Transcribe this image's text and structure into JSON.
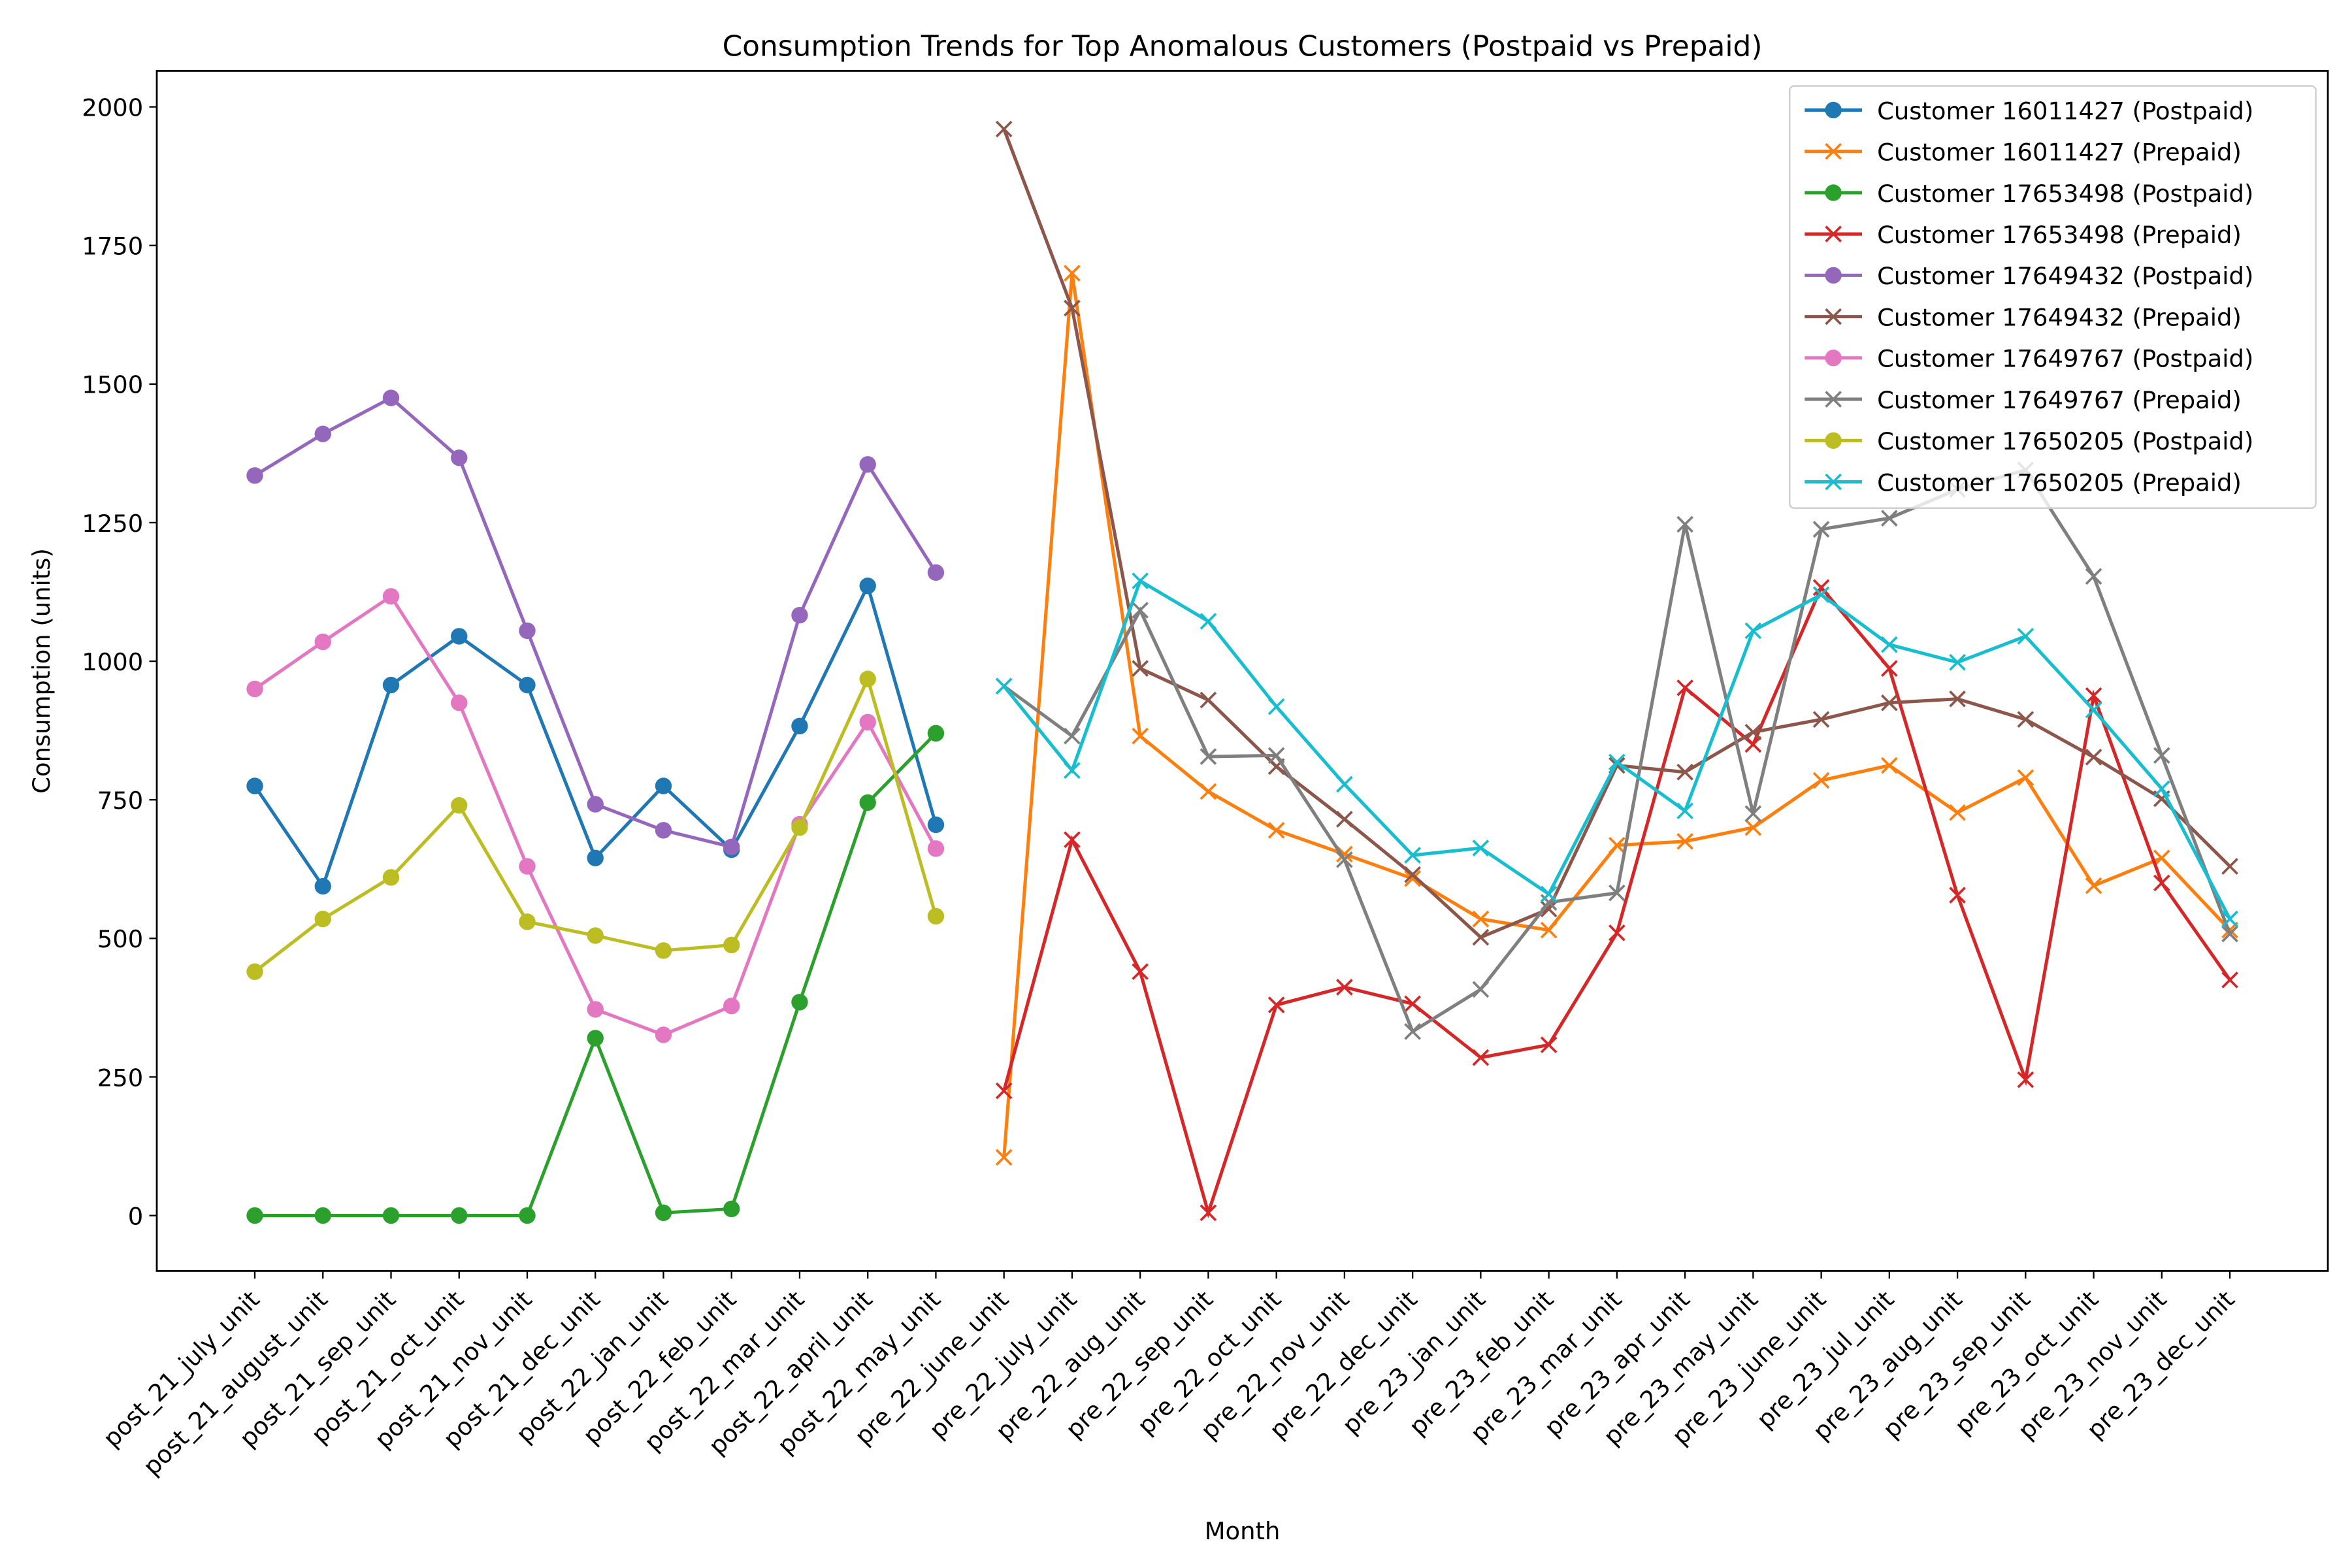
{
  "chart_data": {
    "type": "line",
    "title": "Consumption Trends for Top Anomalous Customers (Postpaid vs Prepaid)",
    "xlabel": "Month",
    "ylabel": "Consumption (units)",
    "categories": [
      "post_21_july_unit",
      "post_21_august_unit",
      "post_21_sep_unit",
      "post_21_oct_unit",
      "post_21_nov_unit",
      "post_21_dec_unit",
      "post_22_jan_unit",
      "post_22_feb_unit",
      "post_22_mar_unit",
      "post_22_april_unit",
      "post_22_may_unit",
      "pre_22_june_unit",
      "pre_22_july_unit",
      "pre_22_aug_unit",
      "pre_22_sep_unit",
      "pre_22_oct_unit",
      "pre_22_nov_unit",
      "pre_22_dec_unit",
      "pre_23_jan_unit",
      "pre_23_feb_unit",
      "pre_23_mar_unit",
      "pre_23_apr_unit",
      "pre_23_may_unit",
      "pre_23_june_unit",
      "pre_23_jul_unit",
      "pre_23_aug_unit",
      "pre_23_sep_unit",
      "pre_23_oct_unit",
      "pre_23_nov_unit",
      "pre_23_dec_unit"
    ],
    "ylim": [
      -100,
      2065
    ],
    "yticks": [
      0,
      250,
      500,
      750,
      1000,
      1250,
      1500,
      1750,
      2000
    ],
    "legend": "upper right",
    "series": [
      {
        "name": "Customer 16011427 (Postpaid)",
        "color": "#1f77b4",
        "marker": "o",
        "values": [
          775,
          594,
          957,
          1045,
          957,
          645,
          775,
          660,
          883,
          1136,
          705,
          null,
          null,
          null,
          null,
          null,
          null,
          null,
          null,
          null,
          null,
          null,
          null,
          null,
          null,
          null,
          null,
          null,
          null,
          null
        ]
      },
      {
        "name": "Customer 16011427 (Prepaid)",
        "color": "#ff7f0e",
        "marker": "x",
        "values": [
          null,
          null,
          null,
          null,
          null,
          null,
          null,
          null,
          null,
          null,
          null,
          105,
          1700,
          865,
          765,
          695,
          652,
          608,
          535,
          515,
          668,
          675,
          700,
          785,
          812,
          727,
          790,
          595,
          645,
          515
        ]
      },
      {
        "name": "Customer 17653498 (Postpaid)",
        "color": "#2ca02c",
        "marker": "o",
        "values": [
          0,
          0,
          0,
          0,
          0,
          320,
          5,
          12,
          385,
          745,
          870,
          null,
          null,
          null,
          null,
          null,
          null,
          null,
          null,
          null,
          null,
          null,
          null,
          null,
          null,
          null,
          null,
          null,
          null,
          null
        ]
      },
      {
        "name": "Customer 17653498 (Prepaid)",
        "color": "#d62728",
        "marker": "x",
        "values": [
          null,
          null,
          null,
          null,
          null,
          null,
          null,
          null,
          null,
          null,
          null,
          225,
          678,
          440,
          5,
          380,
          412,
          382,
          285,
          308,
          510,
          952,
          850,
          1133,
          987,
          578,
          245,
          938,
          600,
          425
        ]
      },
      {
        "name": "Customer 17649432 (Postpaid)",
        "color": "#9467bd",
        "marker": "o",
        "values": [
          1335,
          1410,
          1475,
          1367,
          1055,
          742,
          695,
          665,
          1083,
          1355,
          1160,
          null,
          null,
          null,
          null,
          null,
          null,
          null,
          null,
          null,
          null,
          null,
          null,
          null,
          null,
          null,
          null,
          null,
          null,
          null
        ]
      },
      {
        "name": "Customer 17649432 (Prepaid)",
        "color": "#8c564b",
        "marker": "x",
        "values": [
          null,
          null,
          null,
          null,
          null,
          null,
          null,
          null,
          null,
          null,
          null,
          1960,
          1637,
          987,
          930,
          810,
          715,
          615,
          502,
          553,
          812,
          800,
          872,
          895,
          925,
          932,
          895,
          827,
          752,
          630
        ]
      },
      {
        "name": "Customer 17649767 (Postpaid)",
        "color": "#e377c2",
        "marker": "o",
        "values": [
          950,
          1035,
          1117,
          925,
          630,
          372,
          326,
          378,
          706,
          890,
          662,
          null,
          null,
          null,
          null,
          null,
          null,
          null,
          null,
          null,
          null,
          null,
          null,
          null,
          null,
          null,
          null,
          null,
          null,
          null
        ]
      },
      {
        "name": "Customer 17649767 (Prepaid)",
        "color": "#7f7f7f",
        "marker": "x",
        "values": [
          null,
          null,
          null,
          null,
          null,
          null,
          null,
          null,
          null,
          null,
          null,
          955,
          865,
          1092,
          828,
          830,
          642,
          332,
          408,
          565,
          582,
          1247,
          725,
          1238,
          1258,
          1310,
          1345,
          1153,
          830,
          508
        ]
      },
      {
        "name": "Customer 17650205 (Postpaid)",
        "color": "#bcbd22",
        "marker": "o",
        "values": [
          440,
          535,
          610,
          740,
          530,
          505,
          478,
          488,
          700,
          968,
          540,
          null,
          null,
          null,
          null,
          null,
          null,
          null,
          null,
          null,
          null,
          null,
          null,
          null,
          null,
          null,
          null,
          null,
          null,
          null
        ]
      },
      {
        "name": "Customer 17650205 (Prepaid)",
        "color": "#17becf",
        "marker": "x",
        "values": [
          null,
          null,
          null,
          null,
          null,
          null,
          null,
          null,
          null,
          null,
          null,
          955,
          803,
          1145,
          1072,
          918,
          778,
          650,
          663,
          580,
          818,
          730,
          1055,
          1120,
          1030,
          998,
          1045,
          912,
          770,
          535
        ]
      }
    ]
  }
}
